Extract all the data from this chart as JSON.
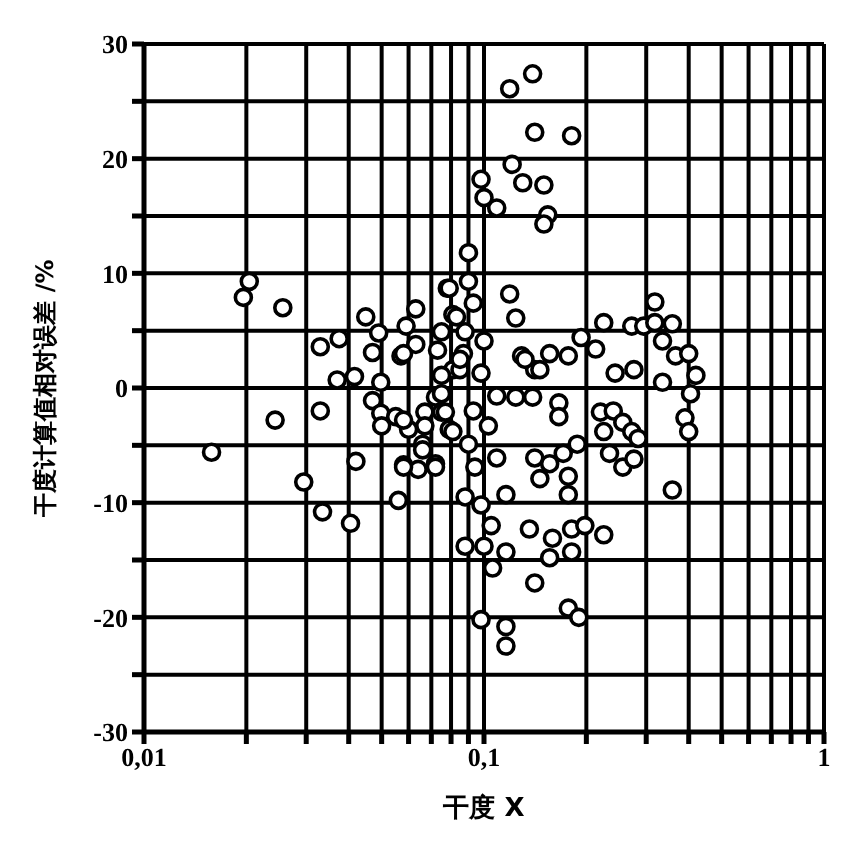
{
  "chart_data": {
    "type": "scatter",
    "xlabel": "干度 X",
    "ylabel": "干度计算值相对误差 /%",
    "log": "x",
    "grid": true,
    "marker": "circle",
    "xlim": [
      0.01,
      1
    ],
    "xticks": [
      {
        "value": 0.01,
        "label": "0,01"
      },
      {
        "value": 0.02,
        "label": null
      },
      {
        "value": 0.03,
        "label": null
      },
      {
        "value": 0.04,
        "label": null
      },
      {
        "value": 0.05,
        "label": null
      },
      {
        "value": 0.06,
        "label": null
      },
      {
        "value": 0.07,
        "label": null
      },
      {
        "value": 0.08,
        "label": null
      },
      {
        "value": 0.09,
        "label": null
      },
      {
        "value": 0.1,
        "label": "0,1"
      },
      {
        "value": 0.2,
        "label": null
      },
      {
        "value": 0.3,
        "label": null
      },
      {
        "value": 0.4,
        "label": null
      },
      {
        "value": 0.5,
        "label": null
      },
      {
        "value": 0.6,
        "label": null
      },
      {
        "value": 0.7,
        "label": null
      },
      {
        "value": 0.8,
        "label": null
      },
      {
        "value": 0.9,
        "label": null
      },
      1
    ],
    "ylim": [
      -30,
      30
    ],
    "yticks": [
      -30,
      {
        "value": -25,
        "label": null
      },
      -20,
      {
        "value": -15,
        "label": null
      },
      -10,
      {
        "value": -5,
        "label": null
      },
      0,
      {
        "value": 5,
        "label": null
      },
      10,
      {
        "value": 15,
        "label": null
      },
      20,
      {
        "value": 25,
        "label": null
      },
      30
    ],
    "series": [
      {
        "color": "#000000",
        "x": [
          0.0204,
          0.0196,
          0.0256,
          0.033,
          0.0375,
          0.0449,
          0.049,
          0.047,
          0.059,
          0.063,
          0.057,
          0.063,
          0.073,
          0.078,
          0.081,
          0.0158,
          0.0243,
          0.033,
          0.037,
          0.0416,
          0.0295,
          0.0335,
          0.0405,
          0.042,
          0.056,
          0.058,
          0.064,
          0.072,
          0.0497,
          0.047,
          0.0497,
          0.05,
          0.055,
          0.066,
          0.06,
          0.067,
          0.075,
          0.072,
          0.079,
          0.081,
          0.139,
          0.119,
          0.141,
          0.181,
          0.121,
          0.13,
          0.15,
          0.098,
          0.1,
          0.109,
          0.154,
          0.15,
          0.09,
          0.079,
          0.09,
          0.093,
          0.119,
          0.124,
          0.083,
          0.075,
          0.088,
          0.1,
          0.058,
          0.087,
          0.085,
          0.098,
          0.075,
          0.129,
          0.141,
          0.156,
          0.177,
          0.193,
          0.213,
          0.225,
          0.243,
          0.276,
          0.272,
          0.295,
          0.318,
          0.318,
          0.358,
          0.335,
          0.366,
          0.4,
          0.335,
          0.42,
          0.109,
          0.124,
          0.139,
          0.166,
          0.166,
          0.22,
          0.24,
          0.256,
          0.225,
          0.272,
          0.284,
          0.234,
          0.256,
          0.276,
          0.188,
          0.141,
          0.156,
          0.171,
          0.177,
          0.146,
          0.177,
          0.116,
          0.109,
          0.098,
          0.105,
          0.136,
          0.181,
          0.198,
          0.225,
          0.159,
          0.181,
          0.156,
          0.116,
          0.088,
          0.1,
          0.106,
          0.141,
          0.177,
          0.19,
          0.098,
          0.116,
          0.116,
          0.405,
          0.39,
          0.4,
          0.358,
          0.085,
          0.132,
          0.146,
          0.058,
          0.067,
          0.077,
          0.081,
          0.066,
          0.058,
          0.072,
          0.09,
          0.094,
          0.088,
          0.103,
          0.093,
          0.075
        ],
        "values": [
          9.3,
          7.9,
          7.0,
          3.6,
          4.3,
          6.2,
          4.8,
          3.1,
          5.4,
          6.9,
          2.8,
          3.8,
          3.3,
          8.7,
          6.4,
          -5.6,
          -2.8,
          -2.0,
          0.7,
          1.0,
          -8.2,
          -10.8,
          -11.8,
          -6.4,
          -9.8,
          -6.7,
          -7.1,
          -6.6,
          0.5,
          -1.1,
          -2.2,
          -3.3,
          -2.5,
          -4.9,
          -3.6,
          -2.1,
          -2.1,
          -0.8,
          -3.6,
          1.6,
          27.4,
          26.1,
          22.3,
          22.0,
          19.5,
          17.9,
          17.7,
          18.2,
          16.6,
          15.7,
          15.1,
          14.3,
          11.8,
          8.7,
          9.3,
          7.4,
          8.2,
          6.1,
          6.2,
          4.9,
          4.9,
          4.1,
          3.0,
          3.0,
          1.6,
          1.3,
          1.1,
          2.8,
          1.6,
          3.0,
          2.8,
          4.4,
          3.4,
          5.7,
          1.3,
          1.6,
          5.4,
          5.4,
          7.5,
          5.7,
          5.6,
          4.1,
          2.8,
          3.0,
          0.5,
          1.1,
          -0.7,
          -0.8,
          -0.8,
          -1.3,
          -2.5,
          -2.1,
          -2.0,
          -3.0,
          -3.8,
          -3.8,
          -4.4,
          -5.7,
          -6.9,
          -6.2,
          -4.9,
          -6.1,
          -6.6,
          -5.7,
          -7.7,
          -7.9,
          -9.3,
          -9.3,
          -6.1,
          -10.2,
          -12.0,
          -12.3,
          -12.3,
          -12.0,
          -12.8,
          -13.1,
          -14.3,
          -14.8,
          -14.3,
          -13.8,
          -13.8,
          -15.7,
          -17.0,
          -19.2,
          -20.0,
          -20.2,
          -20.8,
          -22.5,
          -0.5,
          -2.6,
          -3.8,
          -8.9,
          2.5,
          2.5,
          1.6,
          -2.8,
          -3.3,
          -2.1,
          -3.8,
          -5.4,
          -6.9,
          -6.9,
          -4.9,
          -6.9,
          -9.5,
          -3.3,
          -2.0,
          -0.5
        ]
      }
    ]
  }
}
